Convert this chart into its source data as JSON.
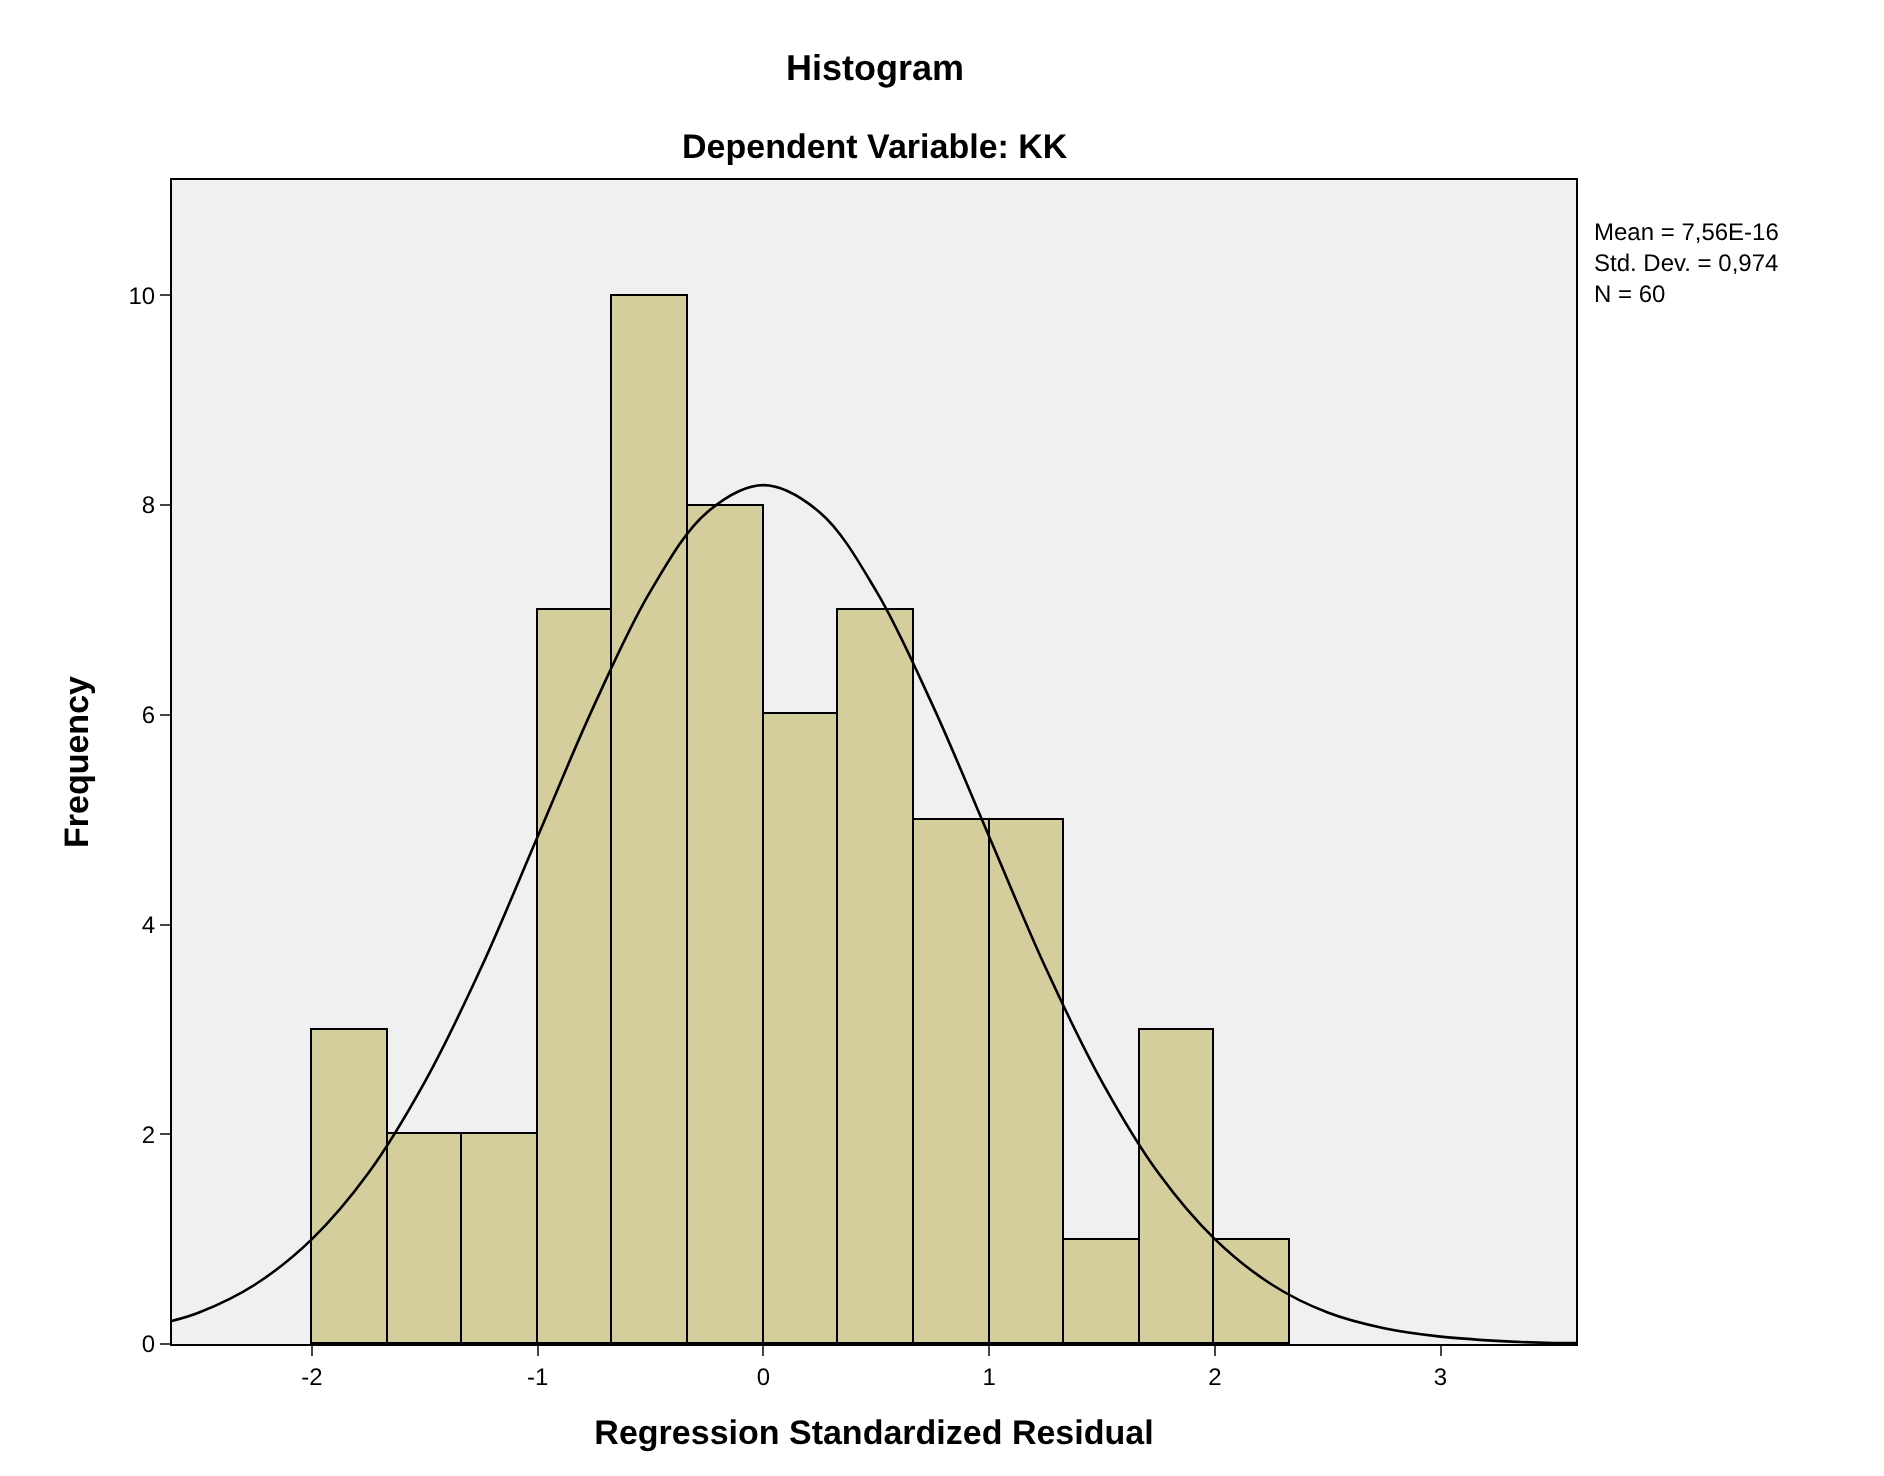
{
  "chart_data": {
    "type": "histogram",
    "title": "Histogram",
    "subtitle": "Dependent Variable: KK",
    "xlabel": "Regression Standardized Residual",
    "ylabel": "Frequency",
    "bins": [
      -2,
      -1.667,
      -1.333,
      -1,
      -0.667,
      -0.333,
      0,
      0.333,
      0.667,
      1,
      1.333,
      1.667,
      2,
      2.333
    ],
    "values": [
      3,
      2,
      2,
      7,
      10,
      8,
      6,
      7,
      5,
      5,
      1,
      3,
      1
    ],
    "color": "#d3ce9c",
    "series": [
      {
        "type": "line",
        "color": "#000000",
        "x": [
          -2.62,
          -2.5,
          -2.25,
          -2.0,
          -1.75,
          -1.5,
          -1.25,
          -1.0,
          -0.75,
          -0.5,
          -0.25,
          0,
          0.25,
          0.5,
          0.75,
          1.0,
          1.25,
          1.5,
          1.75,
          2.0,
          2.25,
          2.5,
          2.75,
          3.0,
          3.25,
          3.5,
          3.6
        ],
        "values": [
          0.22,
          0.3,
          0.57,
          1.0,
          1.63,
          2.5,
          3.59,
          4.84,
          6.09,
          7.18,
          7.93,
          8.19,
          7.93,
          7.18,
          6.09,
          4.84,
          3.59,
          2.5,
          1.63,
          1.0,
          0.57,
          0.3,
          0.15,
          0.07,
          0.03,
          0.01,
          0.01
        ]
      }
    ],
    "xlim": [
      -2.62,
      3.6
    ],
    "xticks": [
      -2,
      -1,
      0,
      1,
      2,
      3
    ],
    "ylim": [
      0,
      11.1
    ],
    "yticks": [
      0,
      2,
      4,
      6,
      8,
      10
    ],
    "annotations": [
      "Mean = 7,56E-16\nStd. Dev. = 0,974\nN = 60"
    ]
  }
}
